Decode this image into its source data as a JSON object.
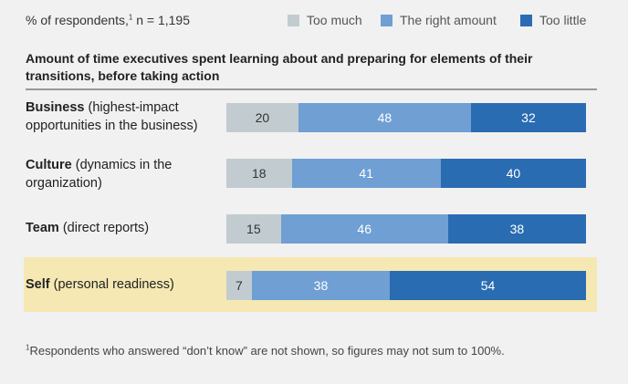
{
  "header": {
    "respondents_prefix": "% of respondents,",
    "footnote_mark": "1",
    "respondents_count": " n = 1,195"
  },
  "colors": {
    "too_much": "#c2ccd0",
    "right_amount": "#6f9fd3",
    "too_little": "#2a6cb2",
    "highlight": "#f5e8b3"
  },
  "chart_data": {
    "type": "bar",
    "orientation": "horizontal",
    "stacked": true,
    "subtitle": "Amount of time executives spent learning about and preparing for elements of their transitions, before taking action",
    "categories": [
      {
        "bold": "Business",
        "rest": " (highest-impact opportunities in the business)"
      },
      {
        "bold": "Culture",
        "rest": " (dynamics in the organization)"
      },
      {
        "bold": "Team",
        "rest": " (direct reports)"
      },
      {
        "bold": "Self",
        "rest": " (personal readiness)"
      }
    ],
    "series": [
      {
        "name": "Too much",
        "values": [
          20,
          18,
          15,
          7
        ]
      },
      {
        "name": "The right amount",
        "values": [
          48,
          41,
          46,
          38
        ]
      },
      {
        "name": "Too little",
        "values": [
          32,
          40,
          38,
          54
        ]
      }
    ],
    "legend_position": "top-right",
    "highlighted_category": "Self"
  },
  "footnote": {
    "mark": "1",
    "text": "Respondents who answered “don’t know” are not shown, so figures may not sum to 100%."
  }
}
